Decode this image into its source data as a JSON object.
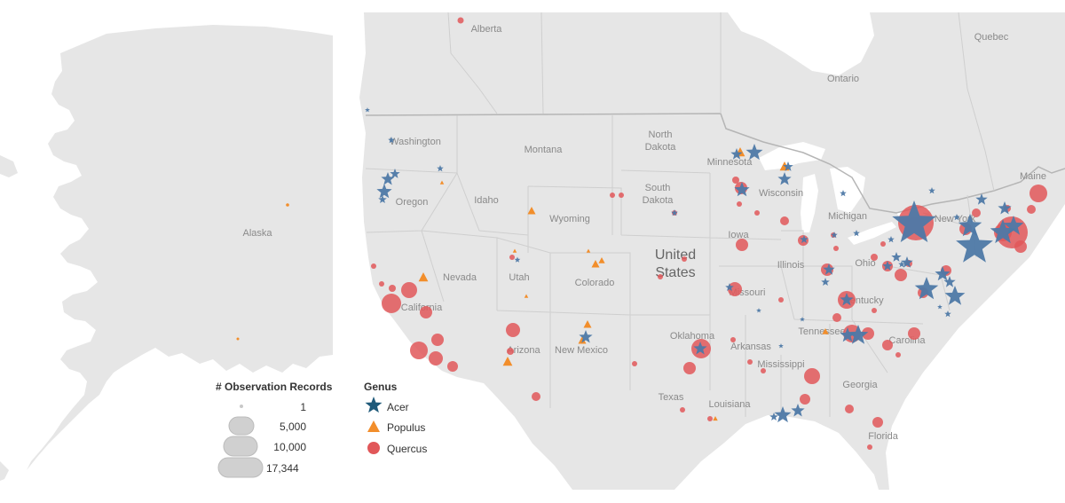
{
  "map": {
    "labels": {
      "alaska": "Alaska",
      "alberta": "Alberta",
      "quebec": "Quebec",
      "ontario": "Ontario",
      "washington": "Washington",
      "montana": "Montana",
      "north_dakota_1": "North",
      "north_dakota_2": "Dakota",
      "minnesota": "Minnesota",
      "oregon": "Oregon",
      "idaho": "Idaho",
      "south_dakota_1": "South",
      "south_dakota_2": "Dakota",
      "wisconsin": "Wisconsin",
      "wyoming": "Wyoming",
      "michigan": "Michigan",
      "new_york": "New York",
      "maine": "Maine",
      "nevada": "Nevada",
      "utah": "Utah",
      "iowa": "Iowa",
      "illinois": "Illinois",
      "ohio": "Ohio",
      "united_states_1": "United",
      "united_states_2": "States",
      "colorado": "Colorado",
      "missouri": "Missouri",
      "california": "California",
      "kentucky": "Kentucky",
      "oklahoma": "Oklahoma",
      "arizona": "Arizona",
      "new_mexico": "New Mexico",
      "arkansas": "Arkansas",
      "tennessee": "Tennessee",
      "carolina": "Carolina",
      "texas": "Texas",
      "mississippi": "Mississippi",
      "georgia": "Georgia",
      "louisiana": "Louisiana",
      "florida": "Florida"
    },
    "colors": {
      "land": "#e6e6e6",
      "water": "#ffffff",
      "border": "#c8c8c8",
      "acer": "#4e79a7",
      "populus": "#f28e2b",
      "quercus": "#e15759"
    }
  },
  "legend": {
    "size_title": "# Observation Records",
    "size_items": [
      "1",
      "5,000",
      "10,000",
      "17,344"
    ],
    "size_values": [
      1,
      5000,
      10000,
      17344
    ],
    "genus_title": "Genus",
    "genus_items": [
      "Acer",
      "Populus",
      "Quercus"
    ],
    "genus_symbols": [
      "star",
      "triangle",
      "circle"
    ]
  }
}
